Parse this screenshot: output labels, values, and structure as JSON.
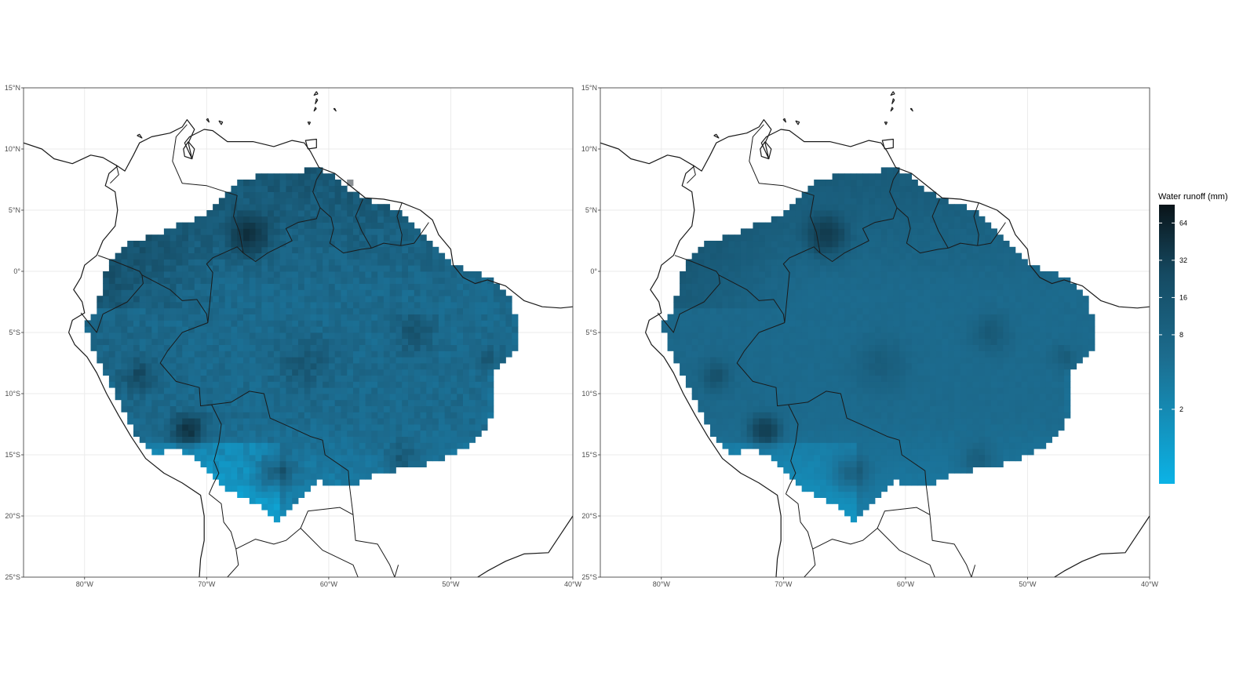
{
  "map": {
    "extent": {
      "lon": [
        -85,
        -40
      ],
      "lat": [
        -25,
        15
      ]
    },
    "x_ticks": [
      {
        "lon": -80,
        "label": "80°W"
      },
      {
        "lon": -70,
        "label": "70°W"
      },
      {
        "lon": -60,
        "label": "60°W"
      },
      {
        "lon": -50,
        "label": "50°W"
      },
      {
        "lon": -40,
        "label": "40°W"
      }
    ],
    "y_ticks": [
      {
        "lat": 15,
        "label": "15°N"
      },
      {
        "lat": 10,
        "label": "10°N"
      },
      {
        "lat": 5,
        "label": "5°N"
      },
      {
        "lat": 0,
        "label": "0°"
      },
      {
        "lat": -5,
        "label": "5°S"
      },
      {
        "lat": -10,
        "label": "10°S"
      },
      {
        "lat": -15,
        "label": "15°S"
      },
      {
        "lat": -20,
        "label": "20°S"
      },
      {
        "lat": -25,
        "label": "25°S"
      }
    ],
    "cell_deg": 0.5,
    "grid_lines": true
  },
  "panels": [
    {
      "id": "left",
      "variability": "high"
    },
    {
      "id": "right",
      "variability": "smooth"
    }
  ],
  "legend": {
    "title": "Water runoff (mm)",
    "placement": "right",
    "scale": "log2",
    "range": [
      0.5,
      90
    ],
    "ticks": [
      {
        "value": 64,
        "label": "64"
      },
      {
        "value": 32,
        "label": "32"
      },
      {
        "value": 16,
        "label": "16"
      },
      {
        "value": 8,
        "label": "8"
      },
      {
        "value": 2,
        "label": "2"
      }
    ],
    "colors": {
      "low": "#0bb3e6",
      "mid": "#1c6d8f",
      "high": "#0a1419"
    }
  }
}
